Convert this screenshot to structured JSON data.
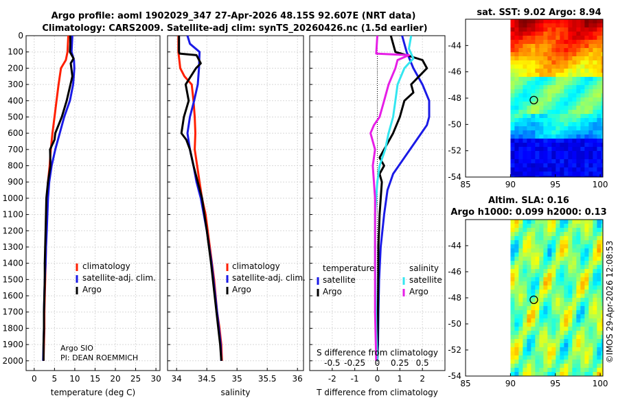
{
  "title_line1": "Argo profile: aoml 1902029_347 27-Apr-2026 48.15S 92.607E (NRT data)",
  "title_line2": "Climatology: CARS2009. Satellite-adj clim: synTS_20260426.nc (1.5d earlier)",
  "sst_title": "sat. SST: 9.02 Argo: 8.94",
  "sla_title1": "Altim. SLA: 0.16",
  "sla_title2": "Argo h1000: 0.099 h2000: 0.13",
  "credit": "©IMOS 29-Apr-2026 12:08:53",
  "pi_line1": "Argo SIO",
  "pi_line2": "PI: DEAN ROEMMICH",
  "colors": {
    "climatology": "#ff1f00",
    "satellite": "#1a1ae6",
    "argo": "#000000",
    "sal_sat": "#33e6f0",
    "sal_argo": "#e61ee6"
  },
  "chart_data": [
    {
      "type": "line",
      "id": "temperature",
      "xlabel": "temperature (deg C)",
      "xlim": [
        -2,
        31
      ],
      "ylim": [
        2060,
        0
      ],
      "xticks": [
        0,
        5,
        10,
        15,
        20,
        25,
        30
      ],
      "xtick_labels": [
        "0",
        "5",
        "10",
        "15",
        "20",
        "25",
        "30"
      ],
      "yticks": [
        0,
        100,
        200,
        300,
        400,
        500,
        600,
        700,
        800,
        900,
        1000,
        1100,
        1200,
        1300,
        1400,
        1500,
        1600,
        1700,
        1800,
        1900,
        2000
      ],
      "ytick_labels": [
        "0",
        "100",
        "200",
        "300",
        "400",
        "500",
        "600",
        "700",
        "800",
        "900",
        "1000",
        "1100",
        "1200",
        "1300",
        "1400",
        "1500",
        "1600",
        "1700",
        "1800",
        "1900",
        "2000"
      ],
      "legend": [
        "climatology",
        "satellite-adj. clim.",
        "Argo"
      ],
      "series": [
        {
          "name": "climatology",
          "color": "#ff1f00",
          "x": [
            8.4,
            8.3,
            8.2,
            7.8,
            6.6,
            6.0,
            5.5,
            5.0,
            4.5,
            4.1,
            3.8,
            3.4,
            3.2,
            3.0,
            2.9,
            2.8,
            2.7,
            2.6,
            2.5,
            2.5,
            2.4,
            2.3
          ],
          "y": [
            0,
            50,
            100,
            150,
            200,
            300,
            400,
            500,
            600,
            700,
            800,
            900,
            1000,
            1200,
            1300,
            1400,
            1500,
            1600,
            1700,
            1800,
            1900,
            2000
          ]
        },
        {
          "name": "satellite-adj. clim.",
          "color": "#1a1ae6",
          "x": [
            9.4,
            9.3,
            9.2,
            9.8,
            9.9,
            9.6,
            8.8,
            7.4,
            6.3,
            5.2,
            4.3,
            3.7,
            3.4,
            3.1,
            2.9,
            2.8,
            2.6,
            2.5,
            2.4,
            2.4,
            2.3,
            2.2
          ],
          "y": [
            0,
            50,
            100,
            150,
            200,
            300,
            400,
            500,
            600,
            700,
            800,
            900,
            1000,
            1200,
            1300,
            1400,
            1500,
            1600,
            1700,
            1800,
            1900,
            2000
          ]
        },
        {
          "name": "Argo",
          "color": "#000000",
          "x": [
            8.9,
            8.9,
            8.8,
            9.7,
            9.0,
            9.4,
            8.0,
            6.8,
            5.2,
            5.0,
            3.9,
            4.0,
            3.4,
            3.0,
            2.8,
            2.7,
            2.6,
            2.6,
            2.5,
            2.4,
            2.4,
            2.3,
            2.3
          ],
          "y": [
            0,
            50,
            100,
            140,
            170,
            250,
            400,
            500,
            600,
            640,
            700,
            800,
            900,
            1000,
            1200,
            1300,
            1400,
            1500,
            1600,
            1700,
            1800,
            1900,
            2000
          ]
        }
      ]
    },
    {
      "type": "line",
      "id": "salinity",
      "xlabel": "salinity",
      "xlim": [
        33.85,
        36.1
      ],
      "ylim": [
        2060,
        0
      ],
      "xticks": [
        34,
        34.5,
        35,
        35.5,
        36
      ],
      "xtick_labels": [
        "34",
        "34.5",
        "35",
        "35.5",
        "36"
      ],
      "legend": [
        "climatology",
        "satellite-adj. clim.",
        "Argo"
      ],
      "series": [
        {
          "name": "climatology",
          "color": "#ff1f00",
          "x": [
            34.03,
            34.03,
            34.06,
            34.13,
            34.25,
            34.28,
            34.3,
            34.31,
            34.3,
            34.34,
            34.38,
            34.42,
            34.48,
            34.55,
            34.62,
            34.67,
            34.71,
            34.74,
            34.75
          ],
          "y": [
            0,
            100,
            200,
            250,
            300,
            400,
            500,
            600,
            700,
            800,
            900,
            1000,
            1100,
            1300,
            1500,
            1700,
            1800,
            1900,
            2000
          ]
        },
        {
          "name": "satellite-adj. clim.",
          "color": "#1a1ae6",
          "x": [
            34.18,
            34.22,
            34.38,
            34.37,
            34.35,
            34.29,
            34.22,
            34.18,
            34.22,
            34.28,
            34.33,
            34.4,
            34.5,
            34.58,
            34.64,
            34.7,
            34.73,
            34.74
          ],
          "y": [
            0,
            50,
            100,
            200,
            300,
            400,
            500,
            600,
            700,
            800,
            900,
            1000,
            1200,
            1400,
            1600,
            1800,
            1900,
            2000
          ]
        },
        {
          "name": "Argo",
          "color": "#000000",
          "x": [
            34.04,
            34.04,
            34.05,
            34.33,
            34.4,
            34.32,
            34.15,
            34.2,
            34.12,
            34.08,
            34.16,
            34.22,
            34.28,
            34.35,
            34.42,
            34.5,
            34.57,
            34.63,
            34.69,
            34.72,
            34.74
          ],
          "y": [
            0,
            100,
            110,
            120,
            170,
            200,
            300,
            400,
            500,
            600,
            640,
            700,
            800,
            900,
            1000,
            1200,
            1400,
            1600,
            1800,
            1900,
            2000
          ]
        }
      ]
    },
    {
      "type": "line",
      "id": "difference",
      "xlabel": "T difference from climatology",
      "xlabel2": "S difference from climatology",
      "xlim": [
        -3.0,
        3.0
      ],
      "ylim": [
        2060,
        0
      ],
      "xticks": [
        -2,
        -1,
        0,
        1,
        2
      ],
      "xtick_labels": [
        "-2",
        "-1",
        "0",
        "1",
        "2"
      ],
      "s_ticks": [
        -0.5,
        -0.25,
        0,
        0.25,
        0.5
      ],
      "s_tick_labels": [
        "-0.5",
        "-0.25",
        "0",
        "0.25",
        "0.5"
      ],
      "legend_left_title": "temperature",
      "legend_right_title": "salinity",
      "legend_left": [
        "satellite",
        "Argo"
      ],
      "legend_right": [
        "satellite",
        "Argo"
      ],
      "series": [
        {
          "name": "T satellite",
          "color": "#1a1ae6",
          "x": [
            1.1,
            1.3,
            1.6,
            2.0,
            2.3,
            2.3,
            2.2,
            1.7,
            1.2,
            0.7,
            0.45,
            0.3,
            0.15,
            0.08,
            0.05,
            0.03,
            0.0
          ],
          "y": [
            0,
            100,
            200,
            300,
            400,
            500,
            550,
            650,
            750,
            850,
            950,
            1100,
            1300,
            1500,
            1700,
            1900,
            2000
          ]
        },
        {
          "name": "T Argo",
          "color": "#000000",
          "x": [
            0.6,
            0.8,
            1.3,
            2.0,
            2.2,
            1.5,
            1.6,
            1.2,
            1.0,
            0.7,
            0.3,
            0.1,
            0.3,
            0.1,
            0.2,
            0.1,
            0.05,
            0.04,
            0.02,
            0.0
          ],
          "y": [
            0,
            100,
            120,
            150,
            200,
            300,
            350,
            400,
            500,
            600,
            700,
            750,
            800,
            850,
            900,
            1100,
            1300,
            1500,
            1800,
            2000
          ]
        },
        {
          "name": "S satellite",
          "color": "#33e6f0",
          "x": [
            1.5,
            1.4,
            1.6,
            1.2,
            0.9,
            0.8,
            0.7,
            0.5,
            0.35,
            0.1,
            0.0,
            -0.1,
            -0.1,
            -0.05,
            0.0
          ],
          "y": [
            0,
            80,
            140,
            200,
            300,
            400,
            500,
            600,
            700,
            800,
            900,
            1100,
            1400,
            1800,
            2000
          ]
        },
        {
          "name": "S Argo",
          "color": "#e61ee6",
          "x": [
            0.0,
            -0.05,
            1.4,
            0.9,
            0.8,
            0.5,
            0.3,
            0.1,
            -0.15,
            -0.3,
            -0.1,
            -0.2,
            -0.1,
            -0.1,
            -0.1,
            -0.05
          ],
          "y": [
            0,
            110,
            120,
            150,
            200,
            300,
            400,
            500,
            550,
            600,
            700,
            800,
            1000,
            1300,
            1700,
            2000
          ]
        }
      ]
    },
    {
      "type": "heatmap",
      "id": "sst_map",
      "xlim": [
        85,
        100.3
      ],
      "ylim": [
        -54,
        -42
      ],
      "xticks": [
        85,
        90,
        95,
        100
      ],
      "xtick_labels": [
        "85",
        "90",
        "95",
        "100"
      ],
      "yticks": [
        -44,
        -46,
        -48,
        -50,
        -52,
        -54
      ],
      "ytick_labels": [
        "-44",
        "-46",
        "-48",
        "-50",
        "-52",
        "-54"
      ],
      "argo_marker": {
        "lon": 92.607,
        "lat": -48.15
      }
    },
    {
      "type": "heatmap",
      "id": "sla_map",
      "xlim": [
        85,
        100.3
      ],
      "ylim": [
        -54,
        -42
      ],
      "xticks": [
        85,
        90,
        95,
        100
      ],
      "xtick_labels": [
        "85",
        "90",
        "95",
        "100"
      ],
      "yticks": [
        -44,
        -46,
        -48,
        -50,
        -52,
        -54
      ],
      "ytick_labels": [
        "-44",
        "-46",
        "-48",
        "-50",
        "-52",
        "-54"
      ],
      "argo_marker": {
        "lon": 92.607,
        "lat": -48.15
      }
    }
  ]
}
